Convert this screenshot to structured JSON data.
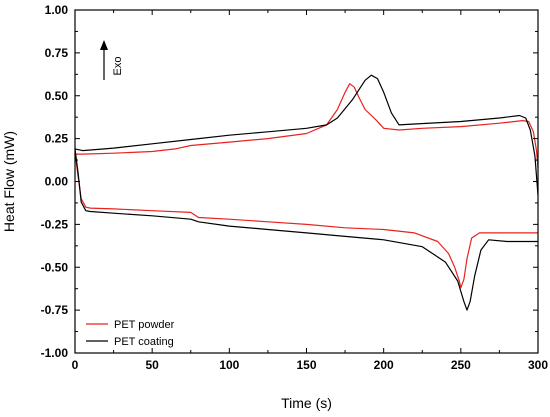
{
  "chart_data": {
    "type": "line",
    "title": "",
    "xlabel": "Time (s)",
    "ylabel": "Heat Flow (mW)",
    "xlim": [
      0,
      300
    ],
    "ylim": [
      -1.0,
      1.0
    ],
    "xticks": [
      0,
      50,
      100,
      150,
      200,
      250,
      300
    ],
    "yticks": [
      -1.0,
      -0.75,
      -0.5,
      -0.25,
      0.0,
      0.25,
      0.5,
      0.75,
      1.0
    ],
    "xtick_labels": [
      "0",
      "50",
      "100",
      "150",
      "200",
      "250",
      "300"
    ],
    "ytick_labels": [
      "-1.00",
      "-0.75",
      "-0.50",
      "-0.25",
      "0.00",
      "0.25",
      "0.50",
      "0.75",
      "1.00"
    ],
    "grid": false,
    "legend_position": "bottom-left",
    "annotation": "Exo",
    "series": [
      {
        "name": "PET powder",
        "color": "#e8221e",
        "segments": [
          [
            [
              0,
              0.16
            ],
            [
              5,
              0.16
            ],
            [
              25,
              0.165
            ],
            [
              50,
              0.175
            ],
            [
              65,
              0.19
            ],
            [
              75,
              0.21
            ],
            [
              100,
              0.23
            ],
            [
              125,
              0.25
            ],
            [
              150,
              0.28
            ],
            [
              163,
              0.33
            ],
            [
              170,
              0.42
            ],
            [
              175,
              0.52
            ],
            [
              178,
              0.57
            ],
            [
              181,
              0.55
            ],
            [
              184,
              0.49
            ],
            [
              188,
              0.42
            ],
            [
              195,
              0.36
            ],
            [
              200,
              0.31
            ],
            [
              210,
              0.3
            ],
            [
              225,
              0.31
            ],
            [
              250,
              0.32
            ],
            [
              275,
              0.34
            ],
            [
              290,
              0.355
            ],
            [
              294,
              0.35
            ],
            [
              297,
              0.29
            ],
            [
              299,
              0.18
            ],
            [
              300,
              0.08
            ]
          ],
          [
            [
              0,
              0.17
            ],
            [
              2,
              0.03
            ],
            [
              4,
              -0.1
            ],
            [
              7,
              -0.15
            ],
            [
              10,
              -0.155
            ],
            [
              25,
              -0.16
            ],
            [
              50,
              -0.17
            ],
            [
              75,
              -0.18
            ],
            [
              80,
              -0.21
            ],
            [
              100,
              -0.22
            ],
            [
              125,
              -0.235
            ],
            [
              150,
              -0.25
            ],
            [
              175,
              -0.27
            ],
            [
              200,
              -0.28
            ],
            [
              220,
              -0.3
            ],
            [
              235,
              -0.35
            ],
            [
              242,
              -0.42
            ],
            [
              246,
              -0.5
            ],
            [
              249,
              -0.58
            ],
            [
              250,
              -0.62
            ],
            [
              252,
              -0.57
            ],
            [
              254,
              -0.45
            ],
            [
              257,
              -0.33
            ],
            [
              262,
              -0.3
            ],
            [
              280,
              -0.3
            ],
            [
              300,
              -0.3
            ]
          ]
        ]
      },
      {
        "name": "PET coating",
        "color": "#000000",
        "segments": [
          [
            [
              0,
              0.19
            ],
            [
              5,
              0.18
            ],
            [
              25,
              0.195
            ],
            [
              50,
              0.22
            ],
            [
              75,
              0.245
            ],
            [
              100,
              0.27
            ],
            [
              125,
              0.29
            ],
            [
              150,
              0.31
            ],
            [
              163,
              0.33
            ],
            [
              170,
              0.37
            ],
            [
              180,
              0.48
            ],
            [
              188,
              0.59
            ],
            [
              192,
              0.62
            ],
            [
              196,
              0.6
            ],
            [
              200,
              0.52
            ],
            [
              205,
              0.4
            ],
            [
              210,
              0.33
            ],
            [
              220,
              0.335
            ],
            [
              250,
              0.35
            ],
            [
              275,
              0.37
            ],
            [
              288,
              0.385
            ],
            [
              292,
              0.37
            ],
            [
              295,
              0.3
            ],
            [
              298,
              0.15
            ],
            [
              300,
              -0.08
            ]
          ],
          [
            [
              0,
              0.19
            ],
            [
              2,
              0.05
            ],
            [
              4,
              -0.12
            ],
            [
              7,
              -0.17
            ],
            [
              10,
              -0.175
            ],
            [
              25,
              -0.185
            ],
            [
              50,
              -0.2
            ],
            [
              75,
              -0.22
            ],
            [
              80,
              -0.235
            ],
            [
              100,
              -0.26
            ],
            [
              125,
              -0.28
            ],
            [
              150,
              -0.3
            ],
            [
              175,
              -0.32
            ],
            [
              200,
              -0.34
            ],
            [
              225,
              -0.38
            ],
            [
              240,
              -0.47
            ],
            [
              248,
              -0.58
            ],
            [
              252,
              -0.7
            ],
            [
              254,
              -0.75
            ],
            [
              256,
              -0.7
            ],
            [
              259,
              -0.55
            ],
            [
              263,
              -0.4
            ],
            [
              268,
              -0.34
            ],
            [
              280,
              -0.35
            ],
            [
              300,
              -0.35
            ]
          ]
        ]
      }
    ]
  }
}
